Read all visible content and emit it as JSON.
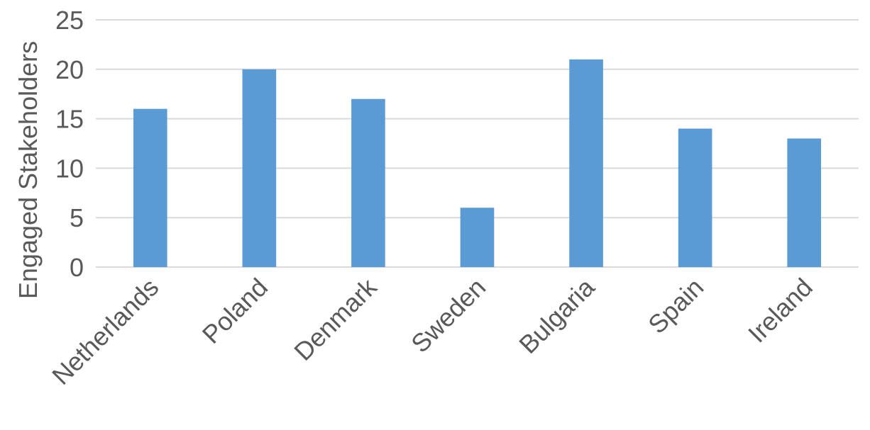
{
  "chart_data": {
    "type": "bar",
    "title": "",
    "xlabel": "",
    "ylabel": "Engaged Stakeholders",
    "categories": [
      "Netherlands",
      "Poland",
      "Denmark",
      "Sweden",
      "Bulgaria",
      "Spain",
      "Ireland"
    ],
    "values": [
      16,
      20,
      17,
      6,
      21,
      14,
      13
    ],
    "ylim": [
      0,
      25
    ],
    "yticks": [
      0,
      5,
      10,
      15,
      20,
      25
    ],
    "grid": true,
    "legend": "none",
    "colors": {
      "bar": "#5b9bd5",
      "grid": "#d9d9d9",
      "text": "#595959"
    }
  }
}
